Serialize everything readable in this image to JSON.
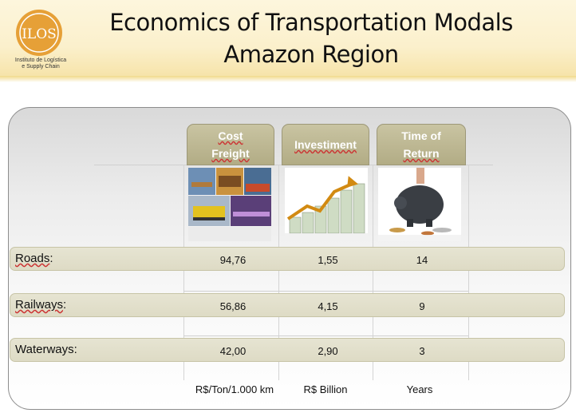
{
  "logo": {
    "text": "ILOS",
    "caption_line1": "Instituto de Logística",
    "caption_line2": "e Supply Chain",
    "color": "#e6a037"
  },
  "title": {
    "line1": "Economics of Transportation Modals",
    "line2": "Amazon Region"
  },
  "columns": [
    {
      "label_line1": "Cost",
      "label_line2": "Freight",
      "unit": "R$/Ton/1.000 km",
      "image": "transport-collage"
    },
    {
      "label_line1": "Investiment",
      "label_line2": "",
      "unit": "R$ Billion",
      "image": "money-growth"
    },
    {
      "label_line1": "Time of",
      "label_line2": "Return",
      "unit": "Years",
      "image": "piggy-bank"
    }
  ],
  "rows": [
    {
      "label": "Roads",
      "values": [
        "94,76",
        "1,55",
        "14"
      ]
    },
    {
      "label": "Railways",
      "values": [
        "56,86",
        "4,15",
        "9"
      ]
    },
    {
      "label": "Waterways",
      "values": [
        "42,00",
        "2,90",
        "3"
      ]
    }
  ],
  "colors": {
    "tab": "#b8b28c",
    "row": "#e3e0cc",
    "header_band": "#fbf0cc"
  }
}
